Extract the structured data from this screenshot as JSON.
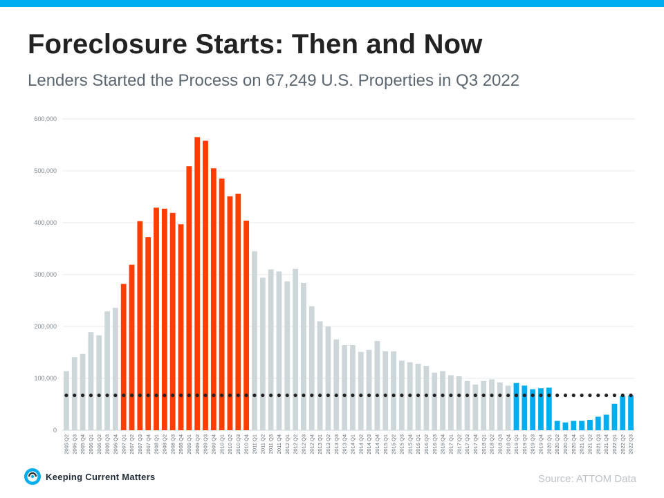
{
  "header": {
    "title": "Foreclosure Starts: Then and Now",
    "subtitle": "Lenders Started the Process on 67,249 U.S. Properties in Q3 2022"
  },
  "footer": {
    "logo_text": "Keeping Current Matters",
    "source": "Source: ATTOM Data"
  },
  "colors": {
    "accent_bar": "#00aeef",
    "gray_bars": "#cdd6d9",
    "red_bars": "#ff3d00",
    "blue_bars": "#00aeef",
    "reference_dots": "#222222"
  },
  "chart_data": {
    "type": "bar",
    "ylim": [
      0,
      600000
    ],
    "yticks": [
      "0",
      "100,000",
      "200,000",
      "300,000",
      "400,000",
      "500,000",
      "600,000"
    ],
    "ytick_values": [
      0,
      100000,
      200000,
      300000,
      400000,
      500000,
      600000
    ],
    "grid": true,
    "categories": [
      "2005 Q2",
      "2005 Q3",
      "2005 Q4",
      "2006 Q1",
      "2006 Q2",
      "2006 Q3",
      "2006 Q4",
      "2007 Q1",
      "2007 Q2",
      "2007 Q3",
      "2007 Q4",
      "2008 Q1",
      "2008 Q2",
      "2008 Q3",
      "2008 Q4",
      "2009 Q1",
      "2009 Q2",
      "2009 Q3",
      "2009 Q4",
      "2010 Q1",
      "2010 Q2",
      "2010 Q3",
      "2010 Q4",
      "2011 Q1",
      "2011 Q2",
      "2011 Q3",
      "2011 Q4",
      "2012 Q1",
      "2012 Q2",
      "2012 Q3",
      "2012 Q4",
      "2013 Q1",
      "2013 Q2",
      "2013 Q3",
      "2013 Q4",
      "2014 Q1",
      "2014 Q2",
      "2014 Q3",
      "2014 Q4",
      "2015 Q1",
      "2015 Q2",
      "2015 Q3",
      "2015 Q4",
      "2016 Q1",
      "2016 Q2",
      "2016 Q3",
      "2016 Q4",
      "2017 Q1",
      "2017 Q2",
      "2017 Q3",
      "2017 Q4",
      "2018 Q1",
      "2018 Q2",
      "2018 Q3",
      "2018 Q4",
      "2019 Q1",
      "2019 Q2",
      "2019 Q3",
      "2019 Q4",
      "2020 Q1",
      "2020 Q2",
      "2020 Q3",
      "2020 Q4",
      "2021 Q1",
      "2021 Q2",
      "2021 Q3",
      "2021 Q4",
      "2022 Q1",
      "2022 Q2",
      "2022 Q3"
    ],
    "values": [
      114000,
      141000,
      147000,
      189000,
      183000,
      229000,
      236000,
      282000,
      319000,
      403000,
      372000,
      429000,
      427000,
      419000,
      397000,
      509000,
      565000,
      558000,
      505000,
      485000,
      451000,
      456000,
      404000,
      345000,
      294000,
      310000,
      306000,
      287000,
      311000,
      284000,
      239000,
      210000,
      200000,
      175000,
      164000,
      164000,
      151000,
      155000,
      172000,
      152000,
      152000,
      134000,
      131000,
      128000,
      124000,
      111000,
      114000,
      106000,
      104000,
      95000,
      88000,
      95000,
      98000,
      92000,
      86000,
      91000,
      86000,
      79000,
      81000,
      82000,
      18000,
      15000,
      18000,
      18000,
      20000,
      26000,
      30000,
      51000,
      66000,
      67249
    ],
    "bar_colors": [
      "gray",
      "gray",
      "gray",
      "gray",
      "gray",
      "gray",
      "gray",
      "red",
      "red",
      "red",
      "red",
      "red",
      "red",
      "red",
      "red",
      "red",
      "red",
      "red",
      "red",
      "red",
      "red",
      "red",
      "red",
      "gray",
      "gray",
      "gray",
      "gray",
      "gray",
      "gray",
      "gray",
      "gray",
      "gray",
      "gray",
      "gray",
      "gray",
      "gray",
      "gray",
      "gray",
      "gray",
      "gray",
      "gray",
      "gray",
      "gray",
      "gray",
      "gray",
      "gray",
      "gray",
      "gray",
      "gray",
      "gray",
      "gray",
      "gray",
      "gray",
      "gray",
      "gray",
      "blue",
      "blue",
      "blue",
      "blue",
      "blue",
      "blue",
      "blue",
      "blue",
      "blue",
      "blue",
      "blue",
      "blue",
      "blue",
      "blue",
      "blue"
    ],
    "reference_line": {
      "value": 67249,
      "style": "dotted"
    }
  }
}
